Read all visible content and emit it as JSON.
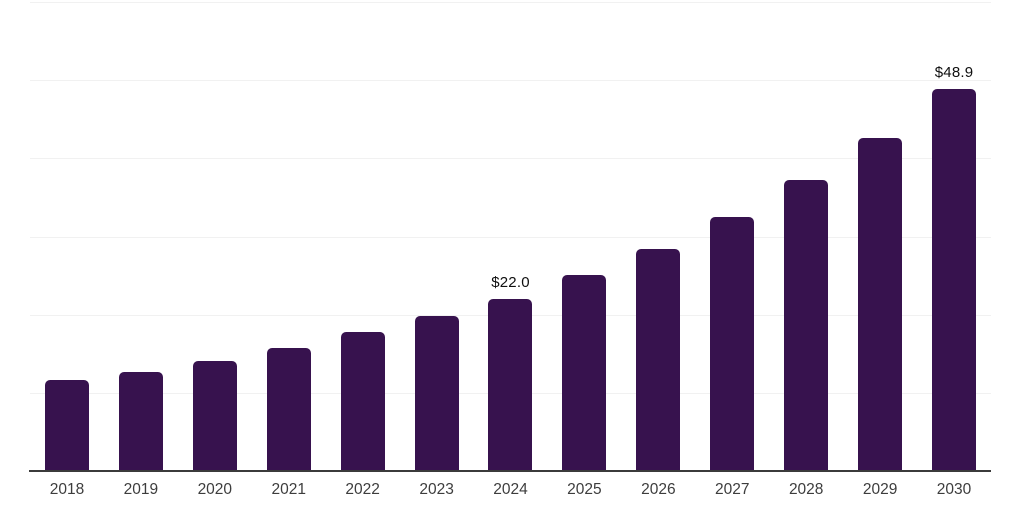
{
  "chart_data": {
    "type": "bar",
    "categories": [
      "2018",
      "2019",
      "2020",
      "2021",
      "2022",
      "2023",
      "2024",
      "2025",
      "2026",
      "2027",
      "2028",
      "2029",
      "2030"
    ],
    "values": [
      11.6,
      12.7,
      14.1,
      15.8,
      17.8,
      19.8,
      22.0,
      25.1,
      28.4,
      32.5,
      37.2,
      42.6,
      48.9
    ],
    "bar_labels": [
      "",
      "",
      "",
      "",
      "",
      "",
      "$22.0",
      "",
      "",
      "",
      "",
      "",
      "$48.9"
    ],
    "title": "",
    "xlabel": "",
    "ylabel": "",
    "ylim": [
      0,
      60
    ],
    "grid": true,
    "gridline_values": [
      10,
      20,
      30,
      40,
      50,
      60
    ],
    "legend": "none",
    "colors": {
      "bar": "#37124e",
      "gridline": "#f1f1f1",
      "axis_line": "#3b3b3b",
      "x_label_text": "#3d3d3d",
      "value_label_text": "#0f0f0f",
      "background": "#ffffff"
    }
  }
}
